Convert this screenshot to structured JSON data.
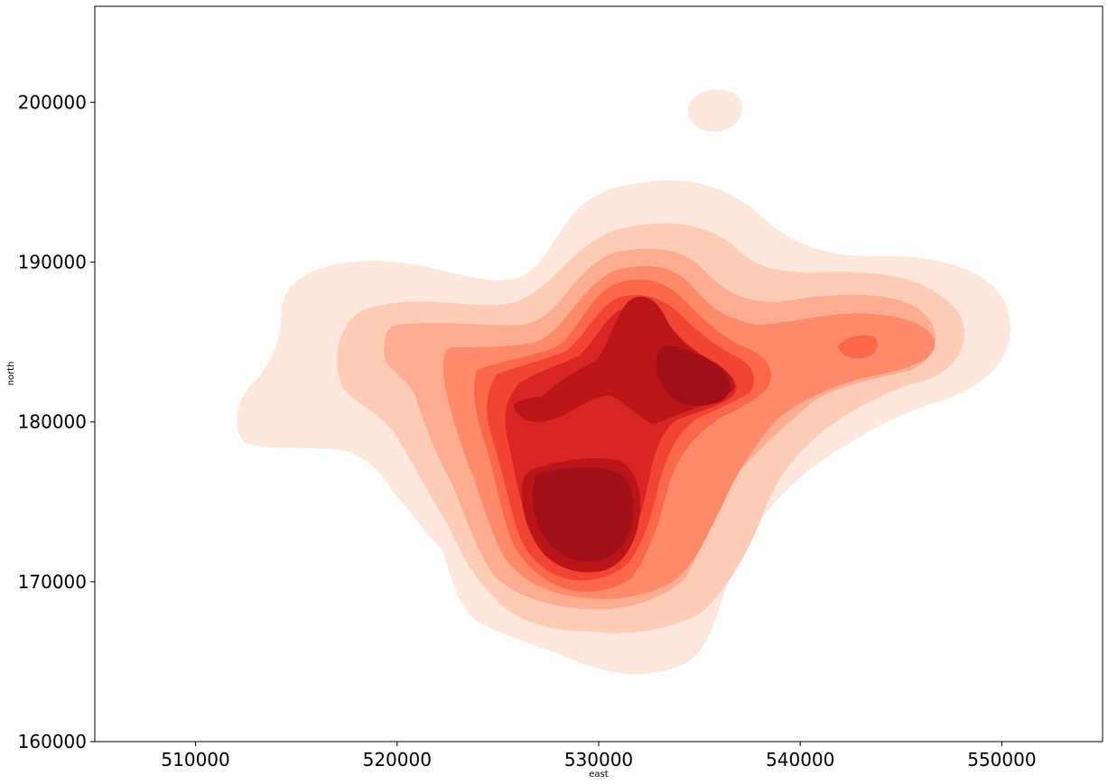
{
  "chart_data": {
    "type": "heatmap",
    "subtype": "kde-filled-contour",
    "colormap": "Reds",
    "title": "",
    "xlabel": "east",
    "ylabel": "north",
    "xlim": [
      505000,
      555000
    ],
    "ylim": [
      160000,
      206000
    ],
    "x_ticks": [
      510000,
      520000,
      530000,
      540000,
      550000
    ],
    "y_ticks": [
      160000,
      170000,
      180000,
      190000,
      200000
    ],
    "x_tick_labels": [
      "510000",
      "520000",
      "530000",
      "540000",
      "550000"
    ],
    "y_tick_labels": [
      "160000",
      "170000",
      "180000",
      "190000",
      "200000"
    ],
    "grid": false,
    "legend": "none",
    "levels": [
      {
        "level": 1,
        "color": "#fee7dc"
      },
      {
        "level": 2,
        "color": "#fcccb7"
      },
      {
        "level": 3,
        "color": "#fcac90"
      },
      {
        "level": 4,
        "color": "#fc8a6b"
      },
      {
        "level": 5,
        "color": "#fa6849"
      },
      {
        "level": 6,
        "color": "#f14432"
      },
      {
        "level": 7,
        "color": "#d92523"
      },
      {
        "level": 8,
        "color": "#bb151a"
      },
      {
        "level": 9,
        "color": "#a10f18"
      }
    ],
    "density_peaks": [
      {
        "east": 529000,
        "north": 174500,
        "level": 9
      },
      {
        "east": 534500,
        "north": 183000,
        "level": 9
      },
      {
        "east": 542800,
        "north": 184800,
        "level": 5
      },
      {
        "east": 530000,
        "north": 180000,
        "level": 5
      },
      {
        "east": 535500,
        "north": 199800,
        "level": 1
      }
    ]
  }
}
